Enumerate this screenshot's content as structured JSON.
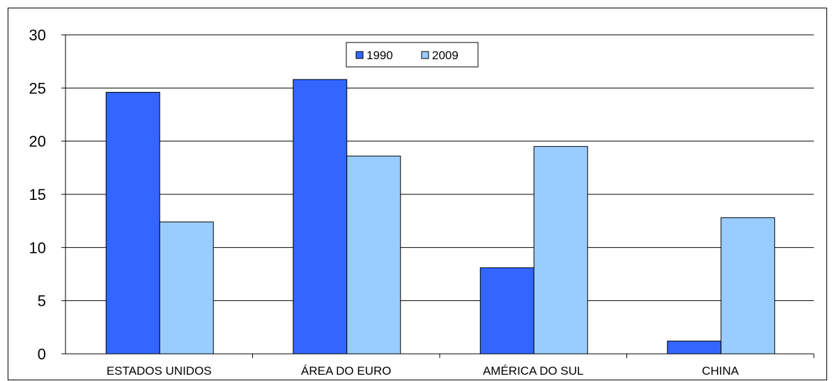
{
  "chart_data": {
    "type": "bar",
    "title": "",
    "xlabel": "",
    "ylabel": "",
    "categories": [
      "ESTADOS UNIDOS",
      "ÁREA DO EURO",
      "AMÉRICA DO SUL",
      "CHINA"
    ],
    "series": [
      {
        "name": "1990",
        "color": "#3366ff",
        "values": [
          24.6,
          25.8,
          8.1,
          1.2
        ]
      },
      {
        "name": "2009",
        "color": "#99ccff",
        "values": [
          12.4,
          18.6,
          19.5,
          12.8
        ]
      }
    ],
    "ylim": [
      0,
      30
    ],
    "yticks": [
      0,
      5,
      10,
      15,
      20,
      25,
      30
    ],
    "grid": true,
    "legend_position": "top-center"
  }
}
